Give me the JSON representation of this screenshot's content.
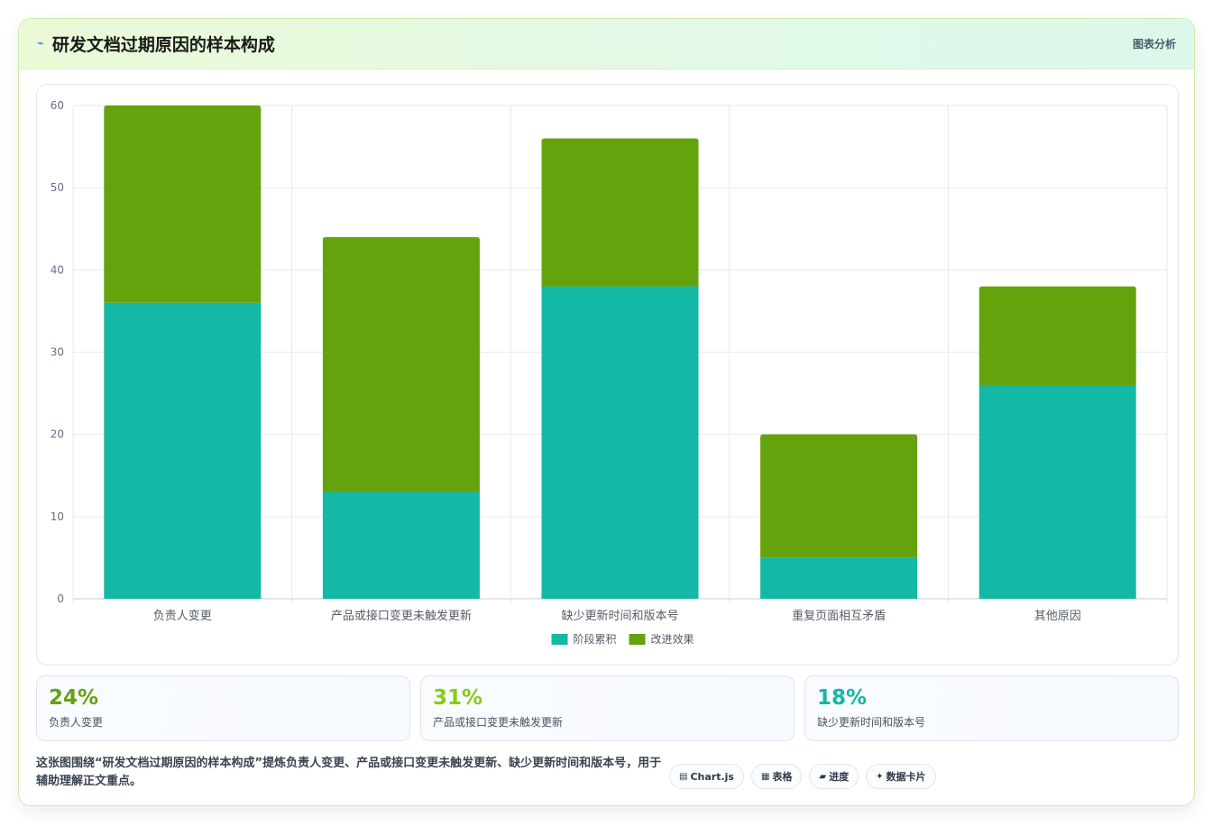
{
  "header": {
    "icon": "trend-line-icon",
    "title": "研发文档过期原因的样本构成",
    "tag": "图表分析"
  },
  "chart_data": {
    "type": "bar",
    "stacked": true,
    "categories": [
      "负责人变更",
      "产品或接口变更未触发更新",
      "缺少更新时间和版本号",
      "重复页面相互矛盾",
      "其他原因"
    ],
    "series": [
      {
        "name": "阶段累积",
        "color": "#14b8a6",
        "values": [
          36,
          13,
          38,
          5,
          26
        ]
      },
      {
        "name": "改进效果",
        "color": "#65a30d",
        "values": [
          24,
          31,
          18,
          15,
          12
        ]
      }
    ],
    "yticks": [
      "0",
      "10",
      "20",
      "30",
      "40",
      "50",
      "60"
    ],
    "ylim": [
      0,
      60
    ],
    "grid": true,
    "legend": "bottom"
  },
  "stats": [
    {
      "value": "24%",
      "label": "负责人变更",
      "color": "#65a30d"
    },
    {
      "value": "31%",
      "label": "产品或接口变更未触发更新",
      "color": "#84cc16"
    },
    {
      "value": "18%",
      "label": "缺少更新时间和版本号",
      "color": "#14b8a6"
    }
  ],
  "footer": {
    "description": "这张图围绕“研发文档过期原因的样本构成”提炼负责人变更、产品或接口变更未触发更新、缺少更新时间和版本号，用于辅助理解正文重点。",
    "chips": [
      {
        "icon": "chart-icon",
        "glyph": "▤",
        "label": "Chart.js"
      },
      {
        "icon": "table-icon",
        "glyph": "▦",
        "label": "表格"
      },
      {
        "icon": "progress-icon",
        "glyph": "▰",
        "label": "进度"
      },
      {
        "icon": "card-icon",
        "glyph": "✦",
        "label": "数据卡片"
      }
    ]
  }
}
